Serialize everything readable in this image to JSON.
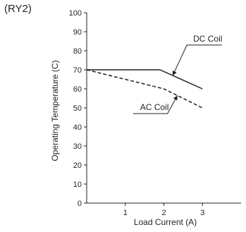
{
  "page": {
    "title": "(RY2)"
  },
  "chart_data": {
    "type": "line",
    "xlabel": "Load Current (A)",
    "ylabel": "Operating Temperature (C)",
    "xlim": [
      0,
      4
    ],
    "ylim": [
      0,
      100
    ],
    "x_ticks": [
      1,
      2,
      3
    ],
    "y_ticks": [
      0,
      10,
      20,
      30,
      40,
      50,
      60,
      70,
      80,
      90,
      100
    ],
    "series": [
      {
        "name": "DC Coil",
        "style": "solid",
        "color": "#231f20",
        "x": [
          0,
          1.9,
          3
        ],
        "y": [
          70,
          70,
          60
        ]
      },
      {
        "name": "AC Coil",
        "style": "dashed",
        "color": "#231f20",
        "x": [
          0,
          2,
          3
        ],
        "y": [
          70,
          60,
          50
        ]
      }
    ],
    "grid": false,
    "legend": "none"
  }
}
